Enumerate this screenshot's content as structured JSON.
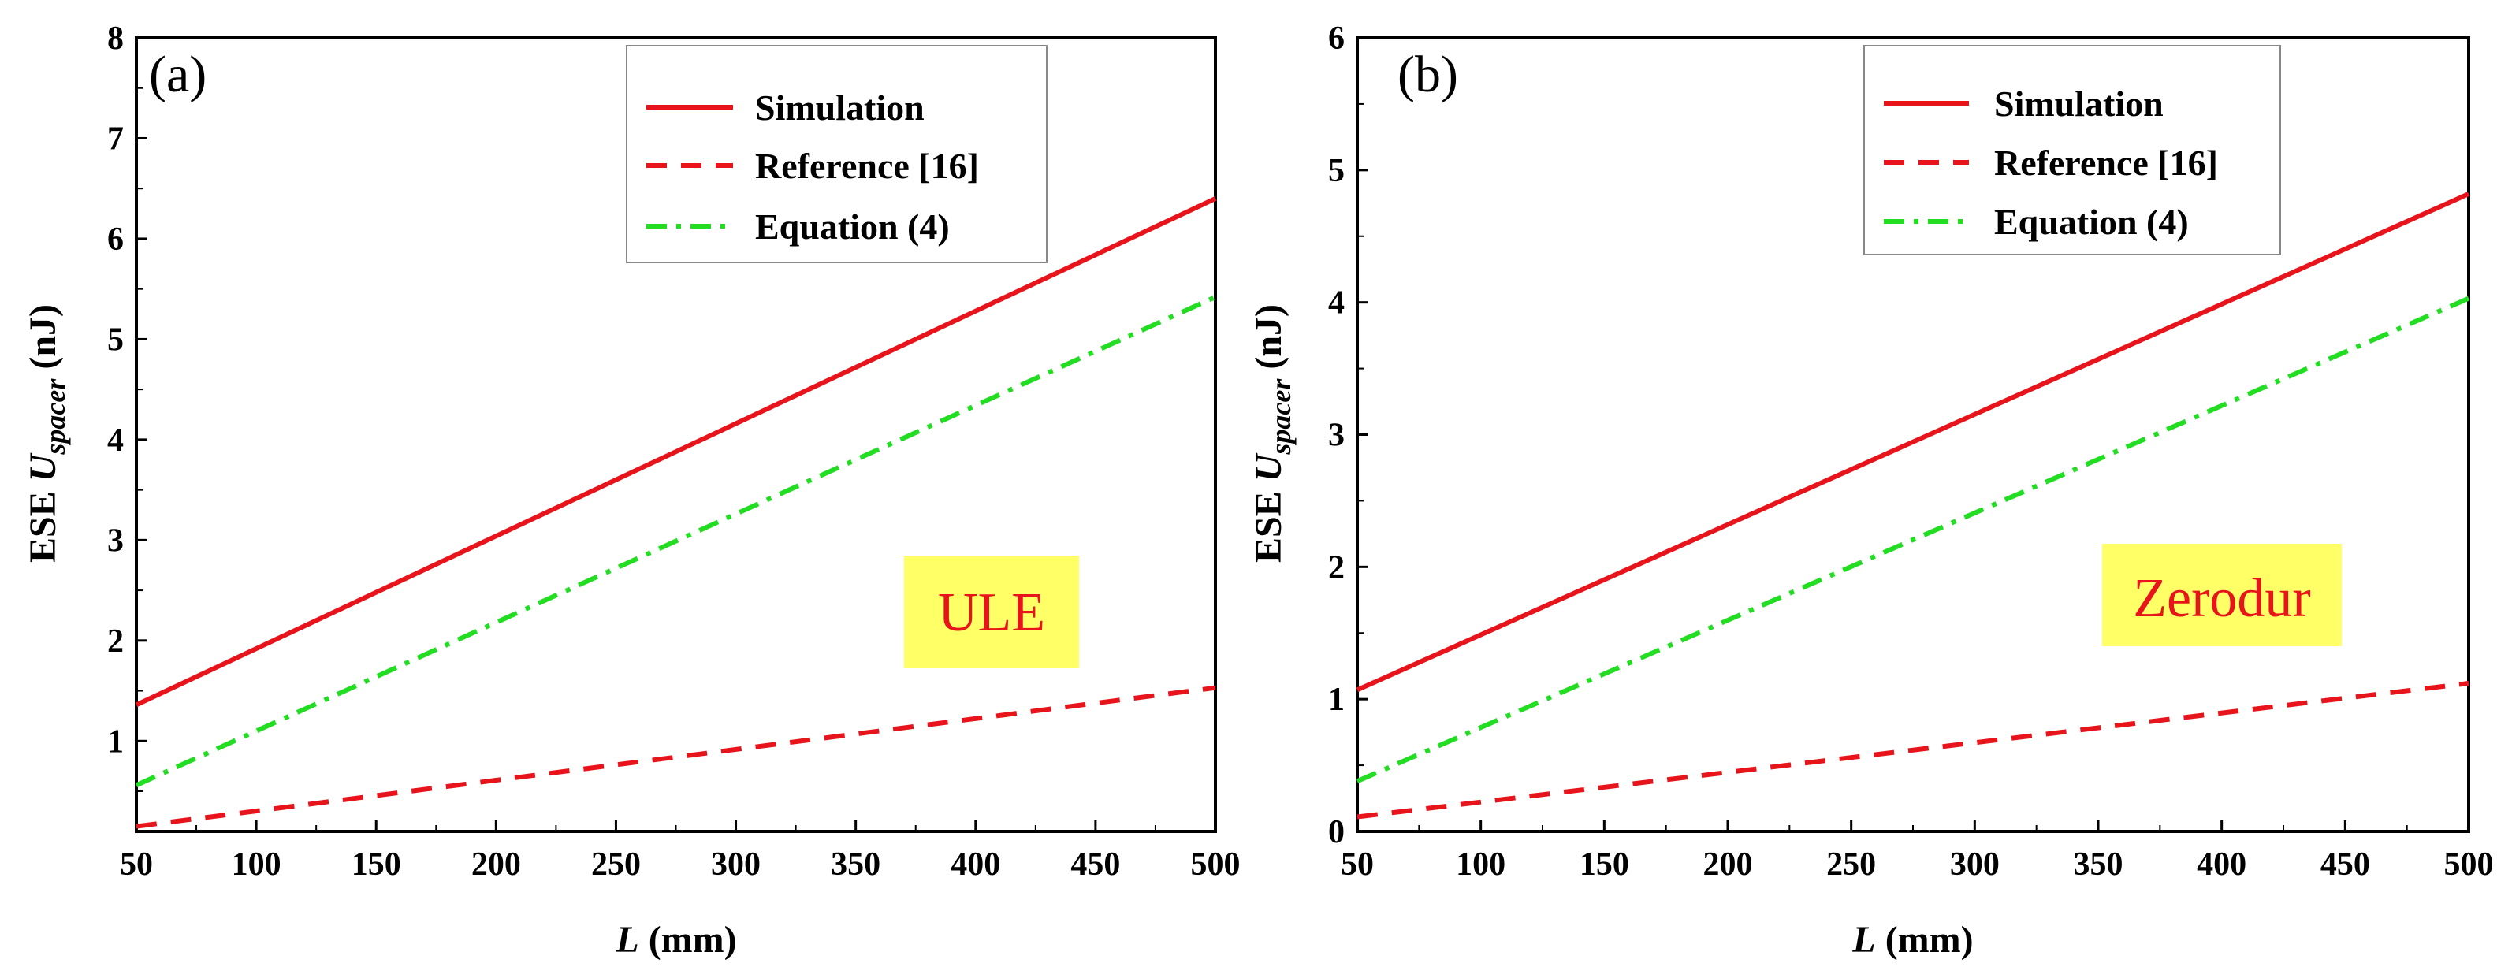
{
  "chart_data": [
    {
      "type": "line",
      "panel_label": "(a)",
      "xlabel": {
        "var": "L",
        "unit": "(mm)"
      },
      "ylabel": {
        "prefix": "ESE",
        "var": "U",
        "sub": "spacer",
        "unit": "(nJ)"
      },
      "xlim": [
        50,
        500
      ],
      "ylim": [
        0.1,
        8
      ],
      "xticks": [
        50,
        100,
        150,
        200,
        250,
        300,
        350,
        400,
        450,
        500
      ],
      "yticks": [
        1,
        2,
        3,
        4,
        5,
        6,
        7,
        8
      ],
      "material": "ULE",
      "series": [
        {
          "name": "Simulation",
          "style": "solid",
          "color": "#e8141c",
          "x": [
            50,
            500
          ],
          "y": [
            1.36,
            6.4
          ]
        },
        {
          "name": "Reference [16]",
          "style": "dashed",
          "color": "#e8141c",
          "x": [
            50,
            500
          ],
          "y": [
            0.15,
            1.53
          ]
        },
        {
          "name": "Equation (4)",
          "style": "dashdot",
          "color": "#22dd22",
          "x": [
            50,
            500
          ],
          "y": [
            0.56,
            5.42
          ]
        }
      ]
    },
    {
      "type": "line",
      "panel_label": "(b)",
      "xlabel": {
        "var": "L",
        "unit": "(mm)"
      },
      "ylabel": {
        "prefix": "ESE",
        "var": "U",
        "sub": "spacer",
        "unit": "(nJ)"
      },
      "xlim": [
        50,
        500
      ],
      "ylim": [
        0,
        6
      ],
      "xticks": [
        50,
        100,
        150,
        200,
        250,
        300,
        350,
        400,
        450,
        500
      ],
      "yticks": [
        0,
        1,
        2,
        3,
        4,
        5,
        6
      ],
      "material": "Zerodur",
      "series": [
        {
          "name": "Simulation",
          "style": "solid",
          "color": "#e8141c",
          "x": [
            50,
            500
          ],
          "y": [
            1.07,
            4.82
          ]
        },
        {
          "name": "Reference [16]",
          "style": "dashed",
          "color": "#e8141c",
          "x": [
            50,
            500
          ],
          "y": [
            0.11,
            1.12
          ]
        },
        {
          "name": "Equation (4)",
          "style": "dashdot",
          "color": "#22dd22",
          "x": [
            50,
            500
          ],
          "y": [
            0.38,
            4.03
          ]
        }
      ]
    }
  ],
  "colors": {
    "box_fill": "#ffff66",
    "box_text": "#e8141c"
  }
}
